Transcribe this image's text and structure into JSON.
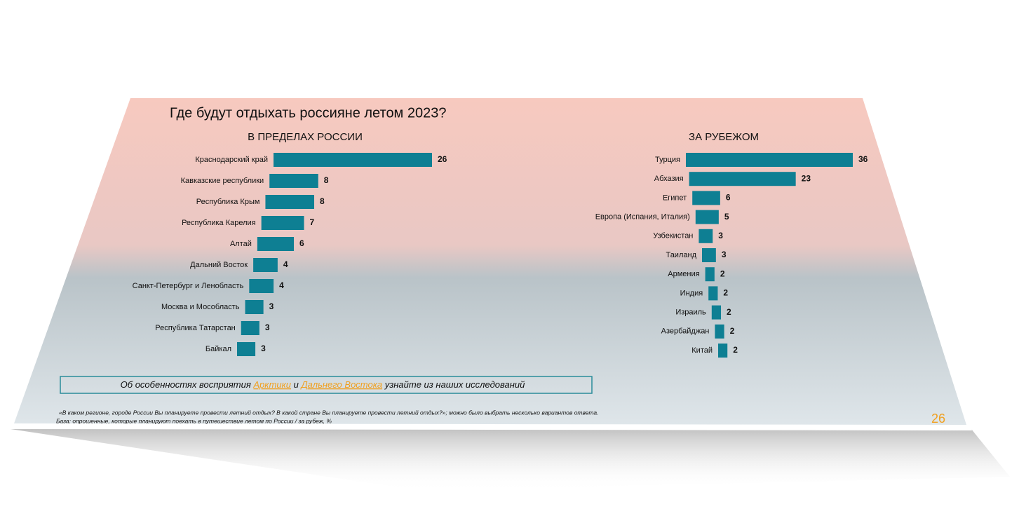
{
  "title": "Где будут отдыхать россияне летом 2023?",
  "chart_data": [
    {
      "type": "bar",
      "orientation": "horizontal",
      "title": "В ПРЕДЕЛАХ РОССИИ",
      "color": "#0e7f93",
      "categories": [
        "Краснодарский край",
        "Кавказские республики",
        "Республика Крым",
        "Республика Карелия",
        "Алтай",
        "Дальний Восток",
        "Санкт-Петербург и Ленобласть",
        "Москва и Мособласть",
        "Республика Татарстан",
        "Байкал"
      ],
      "values": [
        26,
        8,
        8,
        7,
        6,
        4,
        4,
        3,
        3,
        3
      ]
    },
    {
      "type": "bar",
      "orientation": "horizontal",
      "title": "ЗА РУБЕЖОМ",
      "color": "#0e7f93",
      "categories": [
        "Турция",
        "Абхазия",
        "Египет",
        "Европа (Испания, Италия)",
        "Узбекистан",
        "Таиланд",
        "Армения",
        "Индия",
        "Израиль",
        "Азербайджан",
        "Китай"
      ],
      "values": [
        36,
        23,
        6,
        5,
        3,
        3,
        2,
        2,
        2,
        2,
        2
      ]
    }
  ],
  "banner": {
    "before": "Об особенностях восприятия",
    "link1": "Арктики",
    "middle": "и",
    "link2": "Дальнего Востока",
    "after": "узнайте из наших исследований"
  },
  "footnotes": [
    "«В каком регионе, городе России Вы планируете провести летний отдых? В какой стране Вы планируете провести летний отдых?»; можно было выбрать несколько вариантов ответа.",
    "База: опрошенные, которые планируют поехать в путешествие летом по России / за рубеж, %"
  ],
  "page_number": "26"
}
